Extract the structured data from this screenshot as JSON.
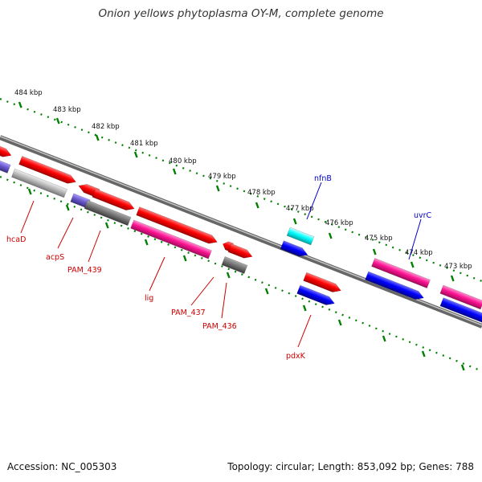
{
  "title": "Onion yellows phytoplasma OY-M, complete genome",
  "footer": {
    "accession": "Accession: NC_005303",
    "summary": "Topology: circular; Length: 853,092 bp; Genes: 788"
  },
  "ticks": [
    "484 kbp",
    "483 kbp",
    "482 kbp",
    "481 kbp",
    "480 kbp",
    "479 kbp",
    "478 kbp",
    "477 kbp",
    "476 kbp",
    "475 kbp",
    "474 kbp",
    "473 kbp"
  ],
  "genes": [
    "hcaD",
    "acpS",
    "PAM_439",
    "lig",
    "PAM_437",
    "PAM_436",
    "pdxK",
    "nfnB",
    "uvrC"
  ],
  "colors": {
    "red": "#ff0000",
    "pink": "#ff1493",
    "blue": "#0000ff",
    "cyan": "#00ffff",
    "gray": "#777777",
    "lightgray": "#bbbbbb",
    "slate": "#6a5acd",
    "backbone": "#888888",
    "tick": "#008000",
    "label_red": "#cc0000",
    "label_blue": "#0000cc"
  }
}
